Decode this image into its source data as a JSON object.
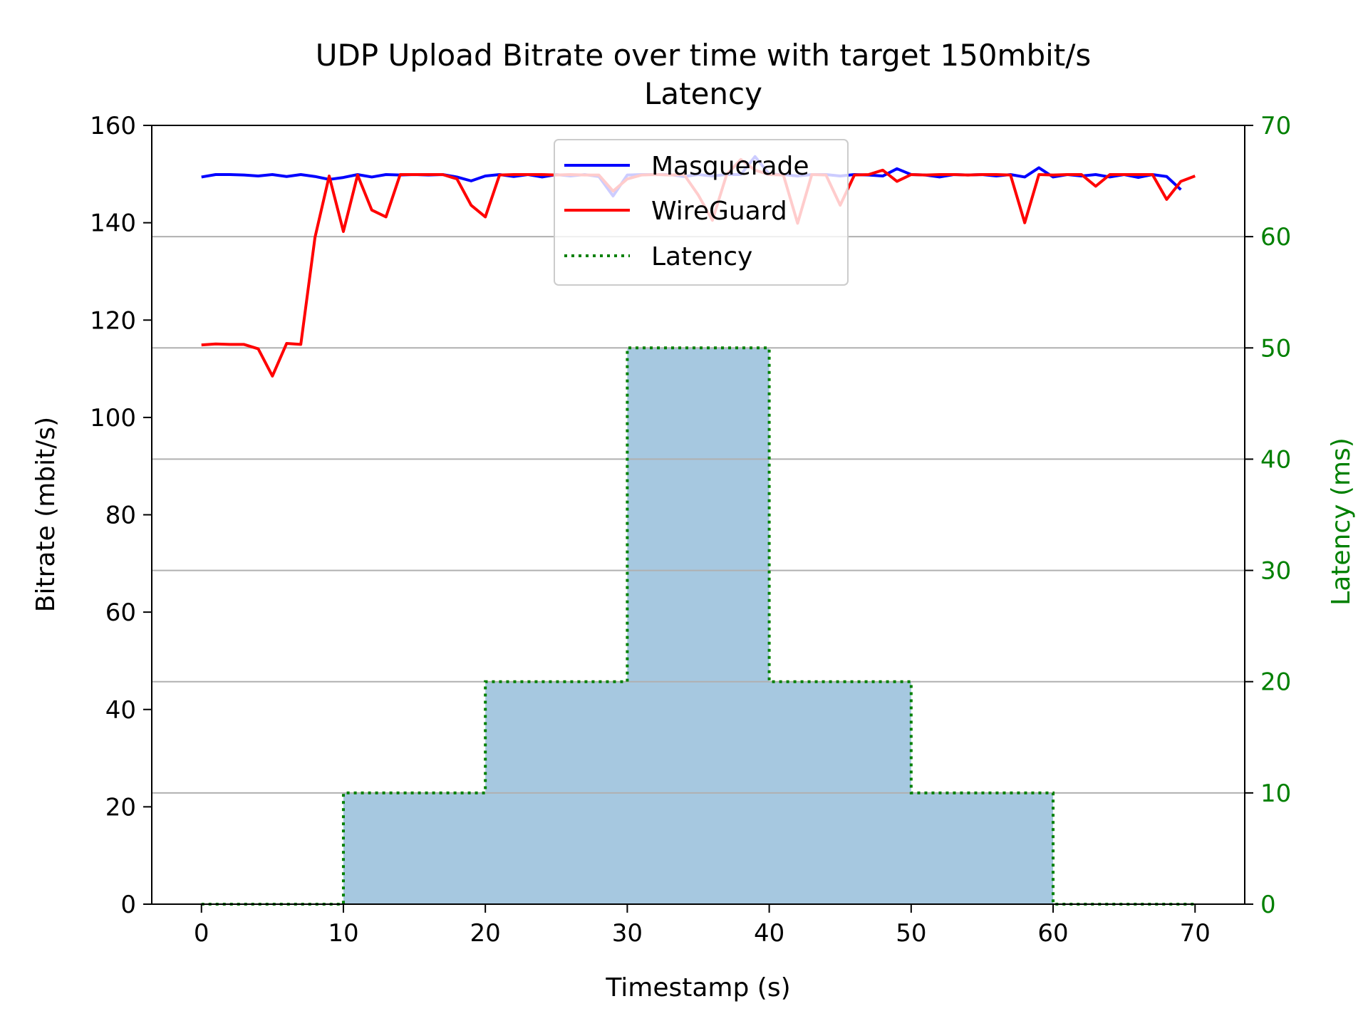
{
  "chart_data": {
    "type": "line",
    "title": "UDP Upload Bitrate over time with target 150mbit/s",
    "subtitle": "Latency",
    "xlabel": "Timestamp (s)",
    "ylabel": "Bitrate (mbit/s)",
    "y2label": "Latency (ms)",
    "xlim": [
      -3.5,
      73.5
    ],
    "ylim": [
      0,
      160
    ],
    "y2lim": [
      0,
      70
    ],
    "xticks": [
      0,
      10,
      20,
      30,
      40,
      50,
      60,
      70
    ],
    "yticks": [
      0,
      20,
      40,
      60,
      80,
      100,
      120,
      140,
      160
    ],
    "y2ticks": [
      0,
      10,
      20,
      30,
      40,
      50,
      60,
      70
    ],
    "grid": "horizontal, right axis",
    "legend": "upper center",
    "colors": {
      "masquerade": "#0000ff",
      "wireguard": "#ff0000",
      "latency": "#008000",
      "latency_fill": "#a6c8e0",
      "grid": "#b0b0b0"
    },
    "series": [
      {
        "name": "Masquerade",
        "axis": "left",
        "x": [
          0,
          1,
          2,
          3,
          4,
          5,
          6,
          7,
          8,
          9,
          10,
          11,
          12,
          13,
          14,
          15,
          16,
          17,
          18,
          19,
          20,
          21,
          22,
          23,
          24,
          25,
          26,
          27,
          28,
          29,
          30,
          31,
          32,
          33,
          34,
          35,
          36,
          37,
          38,
          39,
          40,
          41,
          42,
          43,
          44,
          45,
          46,
          47,
          48,
          49,
          50,
          51,
          52,
          53,
          54,
          55,
          56,
          57,
          58,
          59,
          60,
          61,
          62,
          63,
          64,
          65,
          66,
          67,
          68,
          69
        ],
        "values": [
          149.4,
          149.9,
          149.9,
          149.8,
          149.6,
          149.9,
          149.5,
          149.9,
          149.5,
          148.9,
          149.3,
          149.9,
          149.4,
          149.9,
          149.8,
          149.9,
          149.8,
          149.9,
          149.4,
          148.6,
          149.6,
          149.9,
          149.5,
          149.9,
          149.4,
          149.9,
          149.6,
          149.9,
          149.5,
          145.5,
          149.8,
          149.9,
          149.9,
          149.9,
          149.5,
          149.9,
          149.6,
          149.9,
          149.9,
          153.6,
          150.0,
          149.9,
          149.6,
          149.9,
          149.9,
          149.6,
          149.9,
          149.8,
          149.6,
          151.1,
          149.9,
          149.8,
          149.4,
          149.9,
          149.8,
          149.9,
          149.6,
          149.9,
          149.4,
          151.3,
          149.4,
          149.9,
          149.6,
          149.9,
          149.4,
          149.9,
          149.3,
          149.9,
          149.5,
          146.8
        ]
      },
      {
        "name": "WireGuard",
        "axis": "left",
        "x": [
          0,
          1,
          2,
          3,
          4,
          5,
          6,
          7,
          8,
          9,
          10,
          11,
          12,
          13,
          14,
          15,
          16,
          17,
          18,
          19,
          20,
          21,
          22,
          23,
          24,
          25,
          26,
          27,
          28,
          29,
          30,
          31,
          32,
          33,
          34,
          35,
          36,
          37,
          38,
          39,
          40,
          41,
          42,
          43,
          44,
          45,
          46,
          47,
          48,
          49,
          50,
          51,
          52,
          53,
          54,
          55,
          56,
          57,
          58,
          59,
          60,
          61,
          62,
          63,
          64,
          65,
          66,
          67,
          68,
          69,
          70
        ],
        "values": [
          114.9,
          115.1,
          115.0,
          115.0,
          114.1,
          108.5,
          115.2,
          115.0,
          137.0,
          149.6,
          138.2,
          149.8,
          142.6,
          141.2,
          149.9,
          149.9,
          149.9,
          149.9,
          149.0,
          143.6,
          141.2,
          149.8,
          149.9,
          149.9,
          149.9,
          149.8,
          149.9,
          149.8,
          149.8,
          146.5,
          149.0,
          149.8,
          149.9,
          149.8,
          149.9,
          145.7,
          140.5,
          149.9,
          153.0,
          150.8,
          149.9,
          149.8,
          139.9,
          149.9,
          149.8,
          143.6,
          149.8,
          149.9,
          150.8,
          148.5,
          149.9,
          149.8,
          149.9,
          149.9,
          149.8,
          149.9,
          149.9,
          149.8,
          140.0,
          149.9,
          149.8,
          149.9,
          149.9,
          147.5,
          149.9,
          149.9,
          149.9,
          149.9,
          144.8,
          148.5,
          149.6
        ]
      },
      {
        "name": "Latency",
        "axis": "right",
        "style": "step",
        "x": [
          0,
          10,
          10,
          20,
          20,
          30,
          30,
          40,
          40,
          50,
          50,
          60,
          60,
          70
        ],
        "values": [
          0,
          0,
          10,
          10,
          20,
          20,
          50,
          50,
          20,
          20,
          10,
          10,
          0,
          0
        ]
      }
    ]
  }
}
